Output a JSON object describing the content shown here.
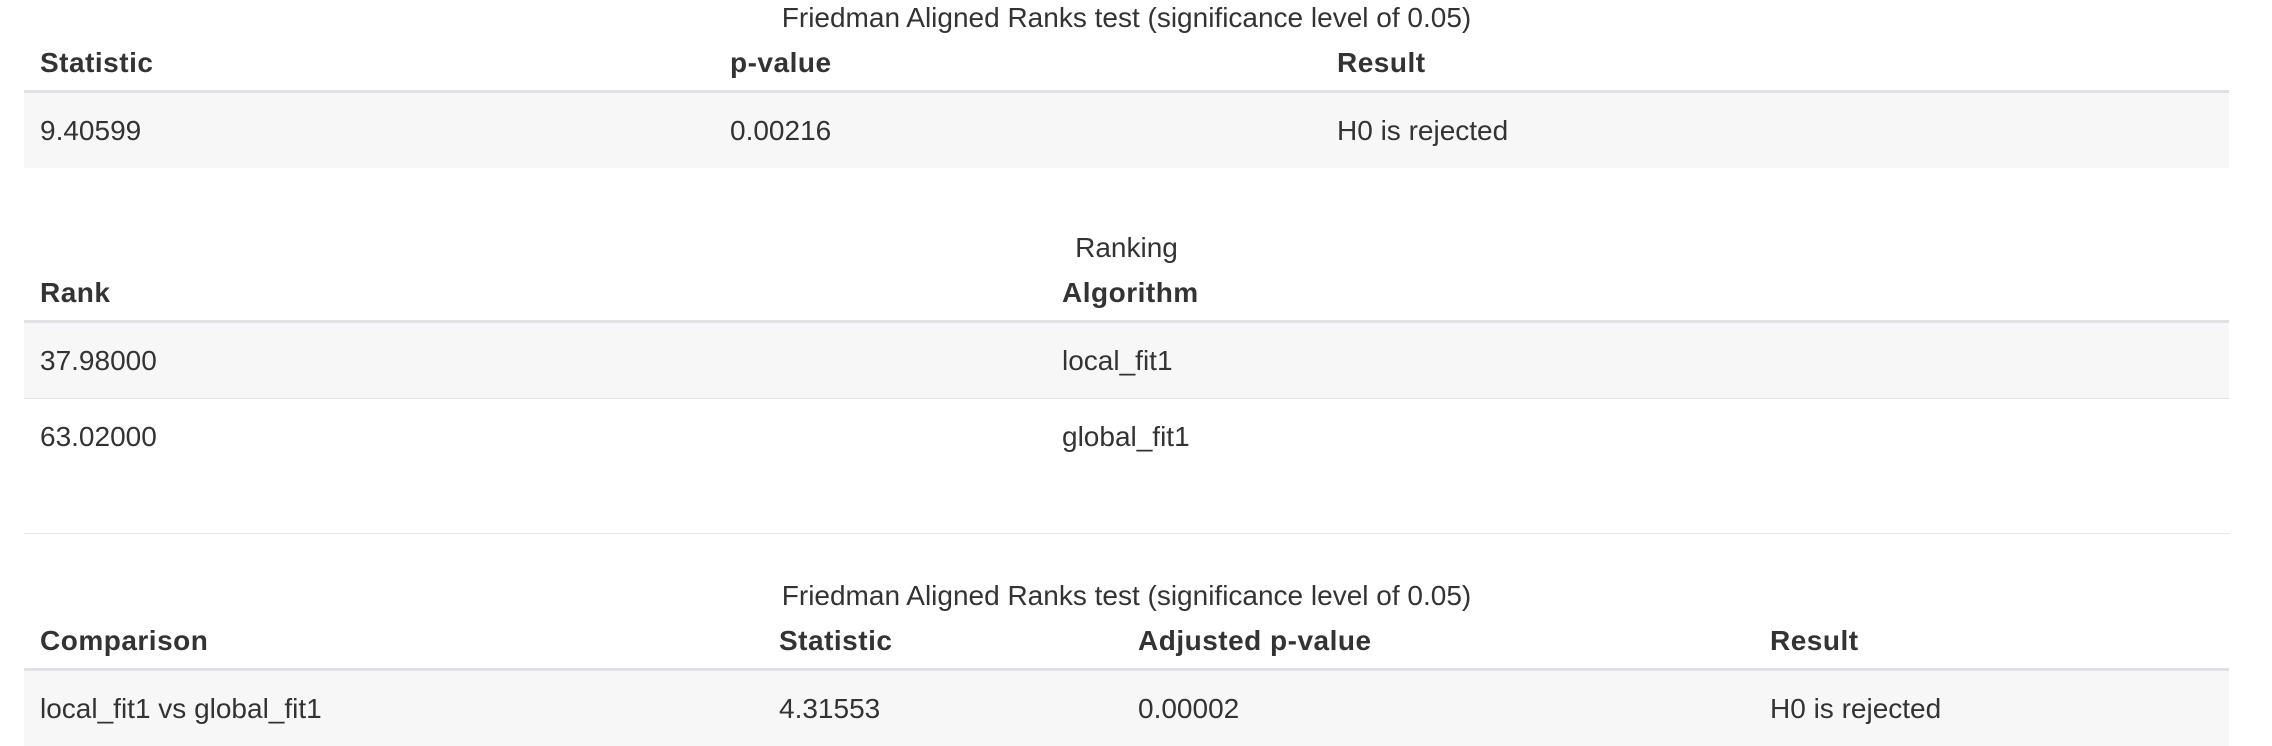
{
  "test_table": {
    "caption": "Friedman Aligned Ranks test (significance level of 0.05)",
    "headers": [
      "Statistic",
      "p-value",
      "Result"
    ],
    "rows": [
      [
        "9.40599",
        "0.00216",
        "H0 is rejected"
      ]
    ]
  },
  "ranking_table": {
    "caption": "Ranking",
    "headers": [
      "Rank",
      "Algorithm"
    ],
    "rows": [
      [
        "37.98000",
        "local_fit1"
      ],
      [
        "63.02000",
        "global_fit1"
      ]
    ]
  },
  "posthoc_table": {
    "caption": "Friedman Aligned Ranks test (significance level of 0.05)",
    "headers": [
      "Comparison",
      "Statistic",
      "Adjusted p-value",
      "Result"
    ],
    "rows": [
      [
        "local_fit1 vs global_fit1",
        "4.31553",
        "0.00002",
        "H0 is rejected"
      ]
    ]
  }
}
